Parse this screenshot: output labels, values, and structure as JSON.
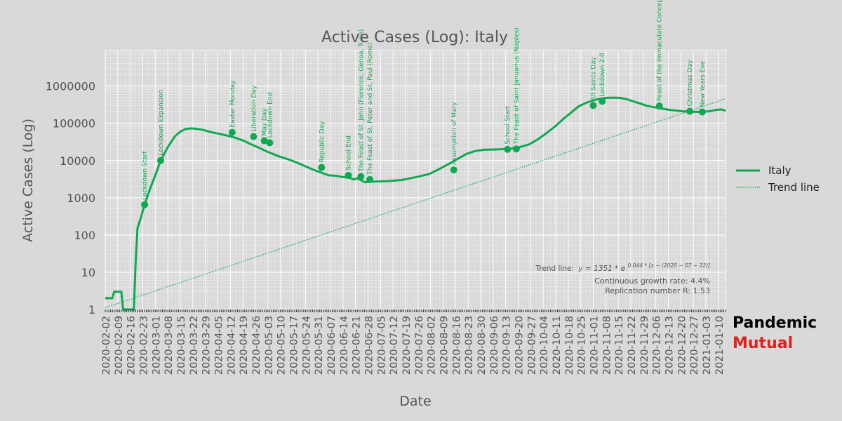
{
  "chart_data": {
    "type": "line",
    "title": "Active Cases (Log): Italy",
    "xlabel": "Date",
    "ylabel": "Active Cases (Log)",
    "y_scale": "log",
    "ylim": [
      1,
      9000000
    ],
    "xlim": [
      "2020-02-02",
      "2021-01-14"
    ],
    "grid": true,
    "legend_position": "right",
    "y_ticks": [
      {
        "value": 1,
        "label": "1"
      },
      {
        "value": 10,
        "label": "10"
      },
      {
        "value": 100,
        "label": "100"
      },
      {
        "value": 1000,
        "label": "1000"
      },
      {
        "value": 10000,
        "label": "10000"
      },
      {
        "value": 100000,
        "label": "100000"
      },
      {
        "value": 1000000,
        "label": "1000000"
      }
    ],
    "x_ticks": [
      "2020-02-02",
      "2020-02-09",
      "2020-02-16",
      "2020-02-23",
      "2020-03-01",
      "2020-03-08",
      "2020-03-15",
      "2020-03-22",
      "2020-03-29",
      "2020-04-05",
      "2020-04-12",
      "2020-04-19",
      "2020-04-26",
      "2020-05-03",
      "2020-05-10",
      "2020-05-17",
      "2020-05-24",
      "2020-05-31",
      "2020-06-07",
      "2020-06-14",
      "2020-06-21",
      "2020-06-28",
      "2020-07-05",
      "2020-07-12",
      "2020-07-19",
      "2020-07-26",
      "2020-08-02",
      "2020-08-09",
      "2020-08-16",
      "2020-08-23",
      "2020-08-30",
      "2020-09-06",
      "2020-09-13",
      "2020-09-20",
      "2020-09-27",
      "2020-10-04",
      "2020-10-11",
      "2020-10-18",
      "2020-10-25",
      "2020-11-01",
      "2020-11-08",
      "2020-11-15",
      "2020-11-22",
      "2020-11-29",
      "2020-12-06",
      "2020-12-13",
      "2020-12-20",
      "2020-12-27",
      "2021-01-03",
      "2021-01-10"
    ],
    "series": [
      {
        "name": "Italy",
        "color": "#10a852",
        "points": [
          [
            "2020-02-02",
            2
          ],
          [
            "2020-02-06",
            2
          ],
          [
            "2020-02-07",
            3
          ],
          [
            "2020-02-11",
            3
          ],
          [
            "2020-02-12",
            1
          ],
          [
            "2020-02-18",
            1
          ],
          [
            "2020-02-19",
            18
          ],
          [
            "2020-02-20",
            150
          ],
          [
            "2020-02-22",
            300
          ],
          [
            "2020-02-24",
            650
          ],
          [
            "2020-02-27",
            1700
          ],
          [
            "2020-03-01",
            4000
          ],
          [
            "2020-03-04",
            10000
          ],
          [
            "2020-03-08",
            23000
          ],
          [
            "2020-03-12",
            45000
          ],
          [
            "2020-03-15",
            60000
          ],
          [
            "2020-03-18",
            70000
          ],
          [
            "2020-03-21",
            73000
          ],
          [
            "2020-03-24",
            71000
          ],
          [
            "2020-03-28",
            66000
          ],
          [
            "2020-04-01",
            58000
          ],
          [
            "2020-04-05",
            53000
          ],
          [
            "2020-04-10",
            47000
          ],
          [
            "2020-04-14",
            42000
          ],
          [
            "2020-04-18",
            36000
          ],
          [
            "2020-04-20",
            33000
          ],
          [
            "2020-04-23",
            28000
          ],
          [
            "2020-04-28",
            22000
          ],
          [
            "2020-05-03",
            17000
          ],
          [
            "2020-05-09",
            13000
          ],
          [
            "2020-05-15",
            10500
          ],
          [
            "2020-05-20",
            8500
          ],
          [
            "2020-05-24",
            7000
          ],
          [
            "2020-05-29",
            5500
          ],
          [
            "2020-06-02",
            4700
          ],
          [
            "2020-06-06",
            4000
          ],
          [
            "2020-06-10",
            3900
          ],
          [
            "2020-06-14",
            3600
          ],
          [
            "2020-06-18",
            3400
          ],
          [
            "2020-06-20",
            3100
          ],
          [
            "2020-06-22",
            3300
          ],
          [
            "2020-06-24",
            3000
          ],
          [
            "2020-06-26",
            2600
          ],
          [
            "2020-07-01",
            2700
          ],
          [
            "2020-07-09",
            2800
          ],
          [
            "2020-07-17",
            3000
          ],
          [
            "2020-07-25",
            3600
          ],
          [
            "2020-08-01",
            4300
          ],
          [
            "2020-08-06",
            5600
          ],
          [
            "2020-08-12",
            8000
          ],
          [
            "2020-08-17",
            11000
          ],
          [
            "2020-08-22",
            15000
          ],
          [
            "2020-08-27",
            18000
          ],
          [
            "2020-09-01",
            19500
          ],
          [
            "2020-09-06",
            19700
          ],
          [
            "2020-09-11",
            20200
          ],
          [
            "2020-09-16",
            21000
          ],
          [
            "2020-09-21",
            23000
          ],
          [
            "2020-09-26",
            27000
          ],
          [
            "2020-10-01",
            37000
          ],
          [
            "2020-10-06",
            55000
          ],
          [
            "2020-10-11",
            85000
          ],
          [
            "2020-10-16",
            140000
          ],
          [
            "2020-10-20",
            200000
          ],
          [
            "2020-10-24",
            290000
          ],
          [
            "2020-10-29",
            370000
          ],
          [
            "2020-11-03",
            440000
          ],
          [
            "2020-11-08",
            480000
          ],
          [
            "2020-11-12",
            490000
          ],
          [
            "2020-11-16",
            480000
          ],
          [
            "2020-11-20",
            440000
          ],
          [
            "2020-11-24",
            380000
          ],
          [
            "2020-11-28",
            330000
          ],
          [
            "2020-12-01",
            295000
          ],
          [
            "2020-12-06",
            265000
          ],
          [
            "2020-12-11",
            240000
          ],
          [
            "2020-12-16",
            222000
          ],
          [
            "2020-12-21",
            210000
          ],
          [
            "2020-12-26",
            205000
          ],
          [
            "2020-12-31",
            202000
          ],
          [
            "2021-01-05",
            210000
          ],
          [
            "2021-01-09",
            230000
          ],
          [
            "2021-01-12",
            235000
          ],
          [
            "2021-01-14",
            215000
          ]
        ]
      },
      {
        "name": "Trend line",
        "color": "#10a852",
        "style": "dotted",
        "points": [
          [
            "2020-02-02",
            1.11
          ],
          [
            "2021-01-14",
            455000
          ]
        ]
      }
    ],
    "markers": [
      {
        "date": "2020-02-24",
        "value": 650,
        "label": "Lockdown Start"
      },
      {
        "date": "2020-03-04",
        "value": 10000,
        "label": "Lockdown Expansion"
      },
      {
        "date": "2020-04-13",
        "value": 57000,
        "label": "Easter Monday"
      },
      {
        "date": "2020-04-25",
        "value": 44000,
        "label": "Liberation Day"
      },
      {
        "date": "2020-05-01",
        "value": 34000,
        "label": "May Day"
      },
      {
        "date": "2020-05-04",
        "value": 30000,
        "label": "Lockdown End"
      },
      {
        "date": "2020-06-02",
        "value": 6500,
        "label": "Republic Day"
      },
      {
        "date": "2020-06-17",
        "value": 4000,
        "label": "School End"
      },
      {
        "date": "2020-06-24",
        "value": 3700,
        "label": "The Feast of St. John (Florence, Genoa, Turin)"
      },
      {
        "date": "2020-06-29",
        "value": 3100,
        "label": "The Feast of St. Peter and St. Paul (Rome)"
      },
      {
        "date": "2020-08-15",
        "value": 5600,
        "label": "Assumption of Mary"
      },
      {
        "date": "2020-09-14",
        "value": 20000,
        "label": "School Start"
      },
      {
        "date": "2020-09-19",
        "value": 20500,
        "label": "The Feast of Saint Januarius (Naples)"
      },
      {
        "date": "2020-11-01",
        "value": 300000,
        "label": "All Saints Day"
      },
      {
        "date": "2020-11-06",
        "value": 390000,
        "label": "Lockdown 2.0"
      },
      {
        "date": "2020-12-08",
        "value": 290000,
        "label": "Feast of the Immaculate Conception"
      },
      {
        "date": "2020-12-25",
        "value": 210000,
        "label": "Christmas Day"
      },
      {
        "date": "2021-01-01",
        "value": 202000,
        "label": "New Years Eve"
      }
    ],
    "annotation": {
      "formula_prefix": "Trend line:",
      "formula_lhs": "y = 1351 * e",
      "formula_exponent": "0.044 * [x − (2020 − 07 − 12)]",
      "growth_rate": "Continuous growth rate: 4.4%",
      "replication": "Replication number R: 1.53"
    }
  },
  "branding": {
    "line1": "Pandemic",
    "line2": "Mutual",
    "line1_color": "#000000",
    "line2_color": "#e0201b"
  }
}
